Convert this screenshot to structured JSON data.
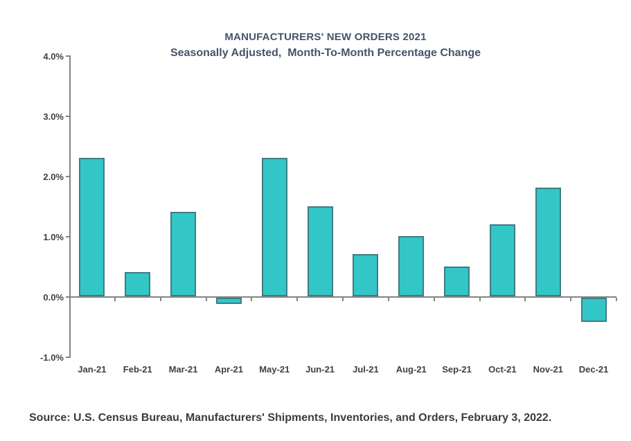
{
  "chart_data": {
    "type": "bar",
    "title": "MANUFACTURERS' NEW ORDERS 2021",
    "subtitle": "Seasonally Adjusted,  Month-To-Month Percentage Change",
    "categories": [
      "Jan-21",
      "Feb-21",
      "Mar-21",
      "Apr-21",
      "May-21",
      "Jun-21",
      "Jul-21",
      "Aug-21",
      "Sep-21",
      "Oct-21",
      "Nov-21",
      "Dec-21"
    ],
    "values": [
      2.3,
      0.4,
      1.4,
      -0.1,
      2.3,
      1.5,
      0.7,
      1.0,
      0.5,
      1.2,
      1.8,
      -0.4
    ],
    "xlabel": "",
    "ylabel": "",
    "ylim": [
      -1.0,
      4.0
    ],
    "yticks": [
      {
        "label": "4.0%",
        "value": 4.0
      },
      {
        "label": "3.0%",
        "value": 3.0
      },
      {
        "label": "2.0%",
        "value": 2.0
      },
      {
        "label": "1.0%",
        "value": 1.0
      },
      {
        "label": "0.0%",
        "value": 0.0
      },
      {
        "label": "-1.0%",
        "value": -1.0
      }
    ],
    "grid": false,
    "legend": "none",
    "bar_fill_color": "#33c6c7",
    "bar_border_color": "#3e7c82",
    "axis_color": "#848484"
  },
  "source_note": "Source: U.S. Census Bureau, Manufacturers' Shipments, Inventories, and Orders, February 3, 2022."
}
